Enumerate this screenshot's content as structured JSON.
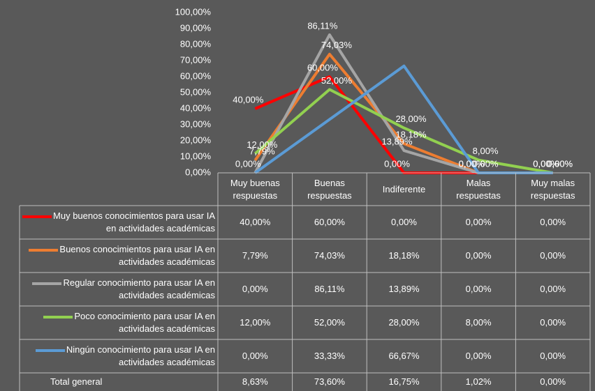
{
  "chart_data": {
    "type": "line",
    "categories": [
      "Muy buenas respuestas",
      "Buenas respuestas",
      "Indiferente",
      "Malas respuestas",
      "Muy malas respuestas"
    ],
    "ylim": [
      0,
      100
    ],
    "yticks": [
      {
        "value": 0,
        "label": "0,00%"
      },
      {
        "value": 10,
        "label": "10,00%"
      },
      {
        "value": 20,
        "label": "20,00%"
      },
      {
        "value": 30,
        "label": "30,00%"
      },
      {
        "value": 40,
        "label": "40,00%"
      },
      {
        "value": 50,
        "label": "50,00%"
      },
      {
        "value": 60,
        "label": "60,00%"
      },
      {
        "value": 70,
        "label": "70,00%"
      },
      {
        "value": 80,
        "label": "80,00%"
      },
      {
        "value": 90,
        "label": "90,00%"
      },
      {
        "value": 100,
        "label": "100,00%"
      }
    ],
    "grid": false,
    "series": [
      {
        "name": "Muy buenos conocimientos para usar IA en actividades académicas",
        "color": "#ff0000",
        "data_labels": true,
        "values": [
          40,
          60,
          0,
          0,
          0
        ],
        "value_labels": [
          "40,00%",
          "60,00%",
          "0,00%",
          "0,00%",
          "0,00%"
        ]
      },
      {
        "name": "Buenos conocimientos para usar IA en actividades académicas",
        "color": "#ed7d31",
        "data_labels": true,
        "values": [
          7.79,
          74.03,
          18.18,
          0,
          0
        ],
        "value_labels": [
          "7,79%",
          "74,03%",
          "18,18%",
          "0,00%",
          "0,00%"
        ]
      },
      {
        "name": "Regular conocimiento para usar IA en actividades académicas",
        "color": "#a5a5a5",
        "data_labels": true,
        "values": [
          0,
          86.11,
          13.89,
          0,
          0
        ],
        "value_labels": [
          "0,00%",
          "86,11%",
          "13,89%",
          "0,00%",
          "0,00%"
        ]
      },
      {
        "name": "Poco conocimiento para usar IA en actividades académicas",
        "color": "#92d050",
        "data_labels": true,
        "values": [
          12,
          52,
          28,
          8,
          0
        ],
        "value_labels": [
          "12,00%",
          "52,00%",
          "28,00%",
          "8,00%",
          "0,00%"
        ]
      },
      {
        "name": "Ningún conocimiento para usar IA en actividades académicas",
        "color": "#5b9bd5",
        "data_labels": false,
        "values": [
          0,
          33.33,
          66.67,
          0,
          0
        ],
        "value_labels": [
          "0,00%",
          "33,33%",
          "66,67%",
          "0,00%",
          "0,00%"
        ]
      }
    ],
    "total": {
      "name": "Total general",
      "values": [
        8.63,
        73.6,
        16.75,
        1.02,
        0
      ],
      "value_labels": [
        "8,63%",
        "73,60%",
        "16,75%",
        "1,02%",
        "0,00%"
      ]
    }
  }
}
